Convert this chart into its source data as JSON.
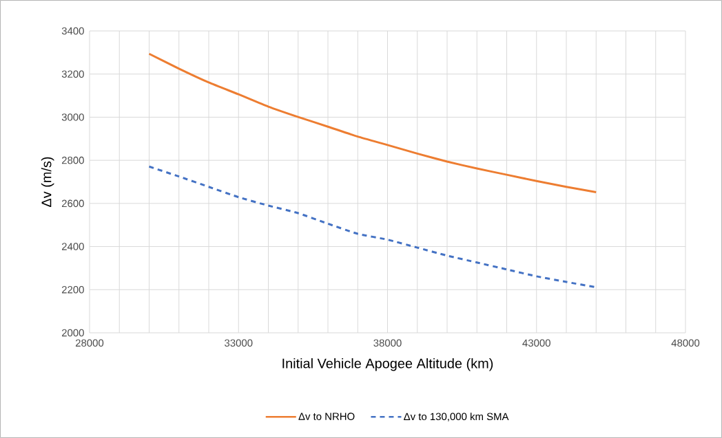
{
  "chart_data": {
    "type": "line",
    "xlabel": "Initial Vehicle Apogee Altitude (km)",
    "ylabel": "Δv (m/s)",
    "x": [
      30000,
      31000,
      32000,
      33000,
      34000,
      35000,
      36000,
      37000,
      38000,
      39000,
      40000,
      41000,
      42000,
      43000,
      44000,
      45000
    ],
    "series": [
      {
        "name": "Δv to NRHO",
        "color": "#ed7d31",
        "line_style": "solid",
        "values": [
          3294,
          3225,
          3161,
          3106,
          3049,
          3001,
          2956,
          2910,
          2871,
          2831,
          2794,
          2762,
          2733,
          2704,
          2677,
          2652
        ]
      },
      {
        "name": "Δv to 130,000 km SMA",
        "color": "#4472c4",
        "line_style": "dashed",
        "values": [
          2771,
          2725,
          2677,
          2629,
          2590,
          2555,
          2506,
          2459,
          2432,
          2395,
          2358,
          2326,
          2294,
          2262,
          2236,
          2211
        ]
      }
    ],
    "xlim": [
      28000,
      48000
    ],
    "xticks": [
      28000,
      33000,
      38000,
      43000,
      48000
    ],
    "ylim": [
      2000,
      3400
    ],
    "yticks": [
      2000,
      2200,
      2400,
      2600,
      2800,
      3000,
      3200,
      3400
    ],
    "grid": true,
    "legend": "bottom"
  }
}
